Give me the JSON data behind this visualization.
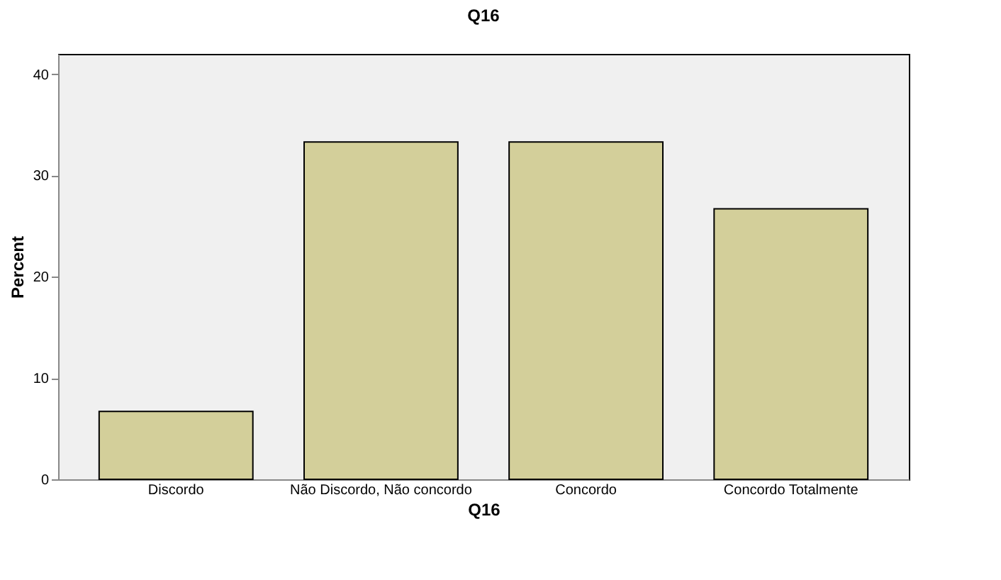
{
  "chart_data": {
    "type": "bar",
    "title": "Q16",
    "xlabel": "Q16",
    "ylabel": "Percent",
    "categories": [
      "Discordo",
      "Não Discordo, Não concordo",
      "Concordo",
      "Concordo Totalmente"
    ],
    "values": [
      6.7,
      33.3,
      33.3,
      26.7
    ],
    "color": "#d3cf9a",
    "ylim": [
      0,
      42
    ],
    "yticks": [
      0,
      10,
      20,
      30,
      40
    ],
    "grid": false
  }
}
